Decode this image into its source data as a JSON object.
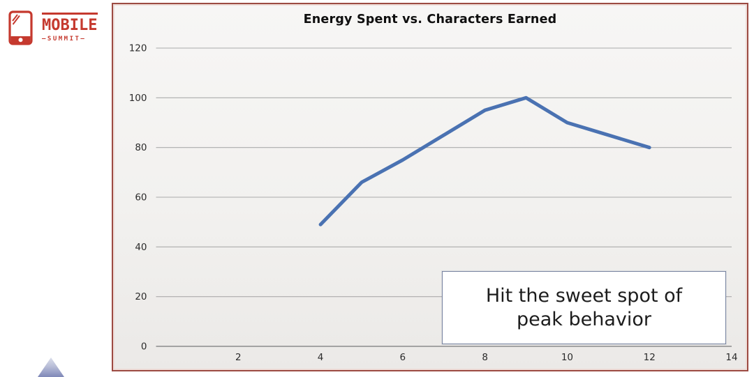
{
  "logo": {
    "name": "MOBILE",
    "subname": "—SUMMIT—",
    "color": "#c5392e"
  },
  "chart": {
    "frame_border_color": "#9c4a42",
    "gridline_color": "#ababab",
    "axis_color": "#999999",
    "line_color": "#4a72b2",
    "annotation_border_color": "#76829f",
    "annotation_background": "#ffffff"
  },
  "chart_data": {
    "type": "line",
    "title": "Energy Spent vs. Characters Earned",
    "x": [
      4,
      5,
      6,
      7,
      8,
      9,
      10,
      11,
      12
    ],
    "y": [
      49,
      66,
      75,
      85,
      95,
      100,
      90,
      85,
      80
    ],
    "xlim": [
      0,
      14
    ],
    "ylim": [
      0,
      120
    ],
    "x_ticks": [
      2,
      4,
      6,
      8,
      10,
      12,
      14
    ],
    "y_ticks": [
      0,
      20,
      40,
      60,
      80,
      100,
      120
    ],
    "grid": true,
    "legend": false,
    "annotation": "Hit the sweet spot of\npeak behavior"
  }
}
